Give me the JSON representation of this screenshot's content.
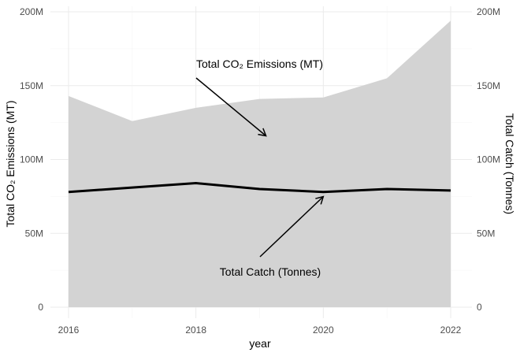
{
  "chart_data": {
    "type": "area",
    "xlabel": "year",
    "ylabel_left": "Total CO₂ Emissions (MT)",
    "ylabel_right": "Total Catch (Tonnes)",
    "x": [
      2016,
      2017,
      2018,
      2019,
      2020,
      2021,
      2022
    ],
    "x_ticks": [
      "2016",
      "2018",
      "2020",
      "2022"
    ],
    "xlim": [
      2016,
      2022
    ],
    "ylim": [
      0,
      200000000
    ],
    "y_ticks": [
      "0",
      "50M",
      "100M",
      "150M",
      "200M"
    ],
    "grid": true,
    "series": [
      {
        "values": [
          143000000,
          126000000,
          135000000,
          141000000,
          142000000,
          155000000,
          194000000
        ],
        "style": "area",
        "color": "#d3d3d3"
      },
      {
        "values": [
          78000000,
          81000000,
          84000000,
          80000000,
          78000000,
          80000000,
          79000000
        ],
        "style": "line",
        "color": "#000000"
      }
    ],
    "annotations": [
      {
        "text": "Total CO₂ Emissions (MT)",
        "points_to": {
          "x": 2019.1,
          "y": 116000000
        }
      },
      {
        "text": "Total Catch (Tonnes)",
        "points_to": {
          "x": 2020,
          "y": 77000000
        }
      }
    ]
  }
}
